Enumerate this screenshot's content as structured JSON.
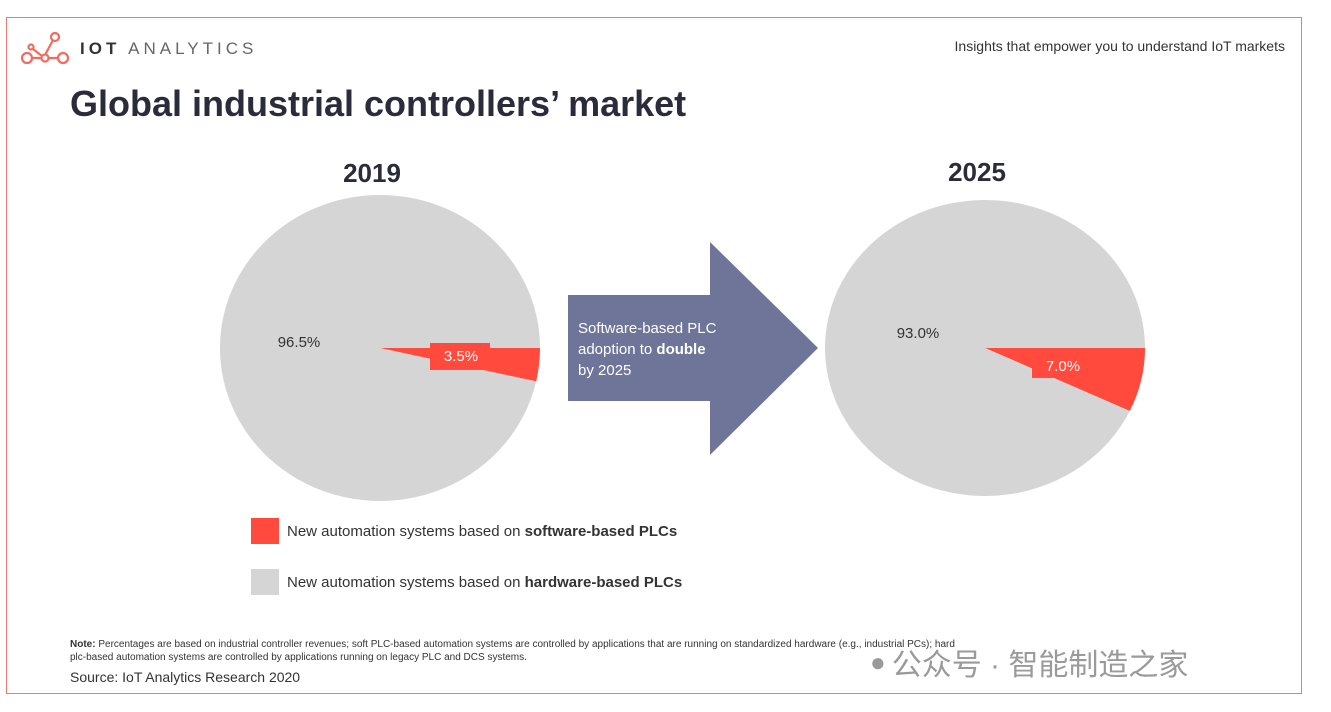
{
  "header": {
    "brand_bold": "IOT",
    "brand_light": "ANALYTICS",
    "tagline": "Insights that empower you to understand IoT markets"
  },
  "title": "Global industrial controllers’ market",
  "arrow": {
    "text_pre": "Software-based PLC adoption to ",
    "text_bold": "double",
    "text_post": " by 2025",
    "color": "#6e7599"
  },
  "chart_data": [
    {
      "type": "pie",
      "title": "2019",
      "slices": [
        {
          "label": "Software-based PLCs",
          "value": 3.5,
          "display": "3.5%",
          "color": "#ff4a3d"
        },
        {
          "label": "Hardware-based PLCs",
          "value": 96.5,
          "display": "96.5%",
          "color": "#d5d5d5"
        }
      ]
    },
    {
      "type": "pie",
      "title": "2025",
      "slices": [
        {
          "label": "Software-based PLCs",
          "value": 7.0,
          "display": "7.0%",
          "color": "#ff4a3d"
        },
        {
          "label": "Hardware-based PLCs",
          "value": 93.0,
          "display": "93.0%",
          "color": "#d5d5d5"
        }
      ]
    }
  ],
  "legend": [
    {
      "pre": "New automation systems based on ",
      "bold": "software-based PLCs",
      "color": "#ff4a3d"
    },
    {
      "pre": "New automation systems based on ",
      "bold": "hardware-based PLCs",
      "color": "#d5d5d5"
    }
  ],
  "footer": {
    "note_label": "Note:",
    "note": " Percentages are based on industrial controller revenues; soft PLC-based automation systems are controlled by applications that are running on standardized hardware (e.g., industrial PCs); hard plc-based automation systems are controlled by applications running on legacy PLC and DCS systems.",
    "source": "Source: IoT Analytics Research 2020"
  },
  "watermark": "公众号 · 智能制造之家"
}
